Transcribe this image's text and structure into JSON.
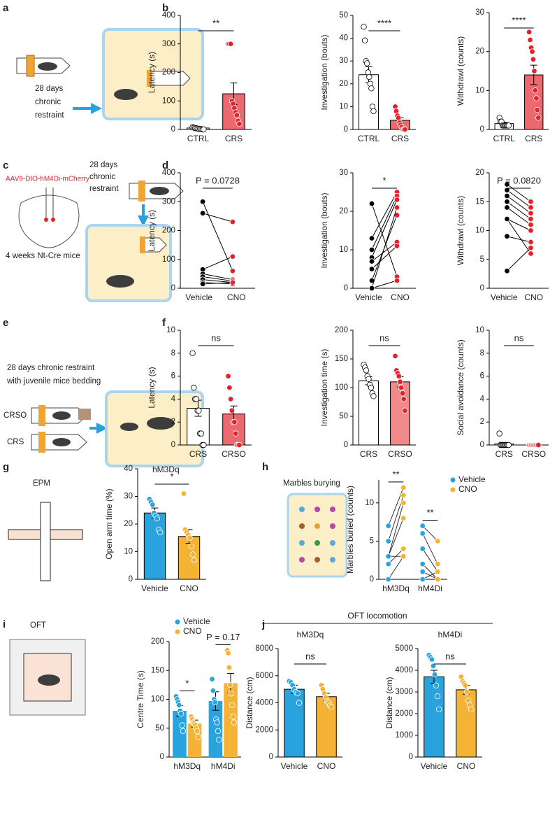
{
  "panel_labels": [
    "a",
    "b",
    "c",
    "d",
    "e",
    "f",
    "g",
    "h",
    "i",
    "j"
  ],
  "schematics": {
    "a": {
      "line1": "28 days",
      "line2": "chronic",
      "line3": "restraint"
    },
    "c": {
      "virus": "AAV9-DIO-hM4Di-mCherry",
      "mice": "4 weeks Nt-Cre mice",
      "line1": "28 days",
      "line2": "chronic",
      "line3": "restraint"
    },
    "e": {
      "line1": "28 days chronic restraint",
      "line2": "with juvenile mice bedding",
      "crso": "CRSO",
      "crs": "CRS"
    },
    "g": {
      "label": "EPM"
    },
    "h": {
      "label": "Marbles burying"
    },
    "i": {
      "label": "OFT"
    },
    "j": {
      "label": "OFT locomotion"
    }
  },
  "chart_data": [
    {
      "type": "bar",
      "ylabel": "Latency (s)",
      "ylim": [
        0,
        400
      ],
      "yticks": [
        0,
        100,
        200,
        300,
        400
      ],
      "categories": [
        "CTRL",
        "CRS"
      ],
      "values": [
        5,
        125
      ],
      "errors": [
        2,
        38
      ],
      "points": [
        [
          8,
          6,
          5,
          4,
          3,
          2,
          2,
          1,
          0,
          0
        ],
        [
          300,
          300,
          300,
          100,
          90,
          75,
          60,
          50,
          30,
          20
        ]
      ],
      "fills": [
        "#ffffff",
        "#ec6a6f"
      ],
      "dot_colors": [
        "#ffffff",
        "#e2232b"
      ],
      "annotation": "**"
    },
    {
      "type": "bar",
      "ylabel": "Investigation (bouts)",
      "ylim": [
        0,
        50
      ],
      "yticks": [
        0,
        10,
        20,
        30,
        40,
        50
      ],
      "categories": [
        "CTRL",
        "CRS"
      ],
      "values": [
        24,
        4
      ],
      "errors": [
        3.5,
        1.2
      ],
      "points": [
        [
          45,
          39,
          30,
          29,
          25,
          23,
          20,
          18,
          10,
          8
        ],
        [
          10,
          8,
          6,
          5,
          3,
          2,
          1,
          0,
          0,
          0
        ]
      ],
      "fills": [
        "#ffffff",
        "#ec6a6f"
      ],
      "dot_colors": [
        "#ffffff",
        "#e2232b"
      ],
      "annotation": "****"
    },
    {
      "type": "bar",
      "ylabel": "Withdrawl (counts)",
      "ylim": [
        0,
        30
      ],
      "yticks": [
        0,
        10,
        20,
        30
      ],
      "categories": [
        "CTRL",
        "CRS"
      ],
      "values": [
        1.5,
        14
      ],
      "errors": [
        0.3,
        2.5
      ],
      "points": [
        [
          3,
          2,
          2,
          1,
          1,
          1,
          1,
          1,
          1,
          1
        ],
        [
          25,
          23,
          21,
          20,
          18,
          15,
          10,
          8,
          5,
          3
        ]
      ],
      "fills": [
        "#ffffff",
        "#ec6a6f"
      ],
      "dot_colors": [
        "#ffffff",
        "#e2232b"
      ],
      "annotation": "****"
    },
    {
      "type": "paired",
      "ylabel": "Latency (s)",
      "ylim": [
        0,
        400
      ],
      "yticks": [
        0,
        100,
        200,
        300,
        400
      ],
      "categories": [
        "Vehicle",
        "CNO"
      ],
      "pairs": [
        [
          300,
          60
        ],
        [
          260,
          230
        ],
        [
          65,
          110
        ],
        [
          50,
          30
        ],
        [
          40,
          25
        ],
        [
          30,
          20
        ],
        [
          20,
          15
        ],
        [
          15,
          20
        ]
      ],
      "colors": [
        "#000000",
        "#e2232b"
      ],
      "annotation": "P = 0.0728"
    },
    {
      "type": "paired",
      "ylabel": "Investigation (bouts)",
      "ylim": [
        0,
        30
      ],
      "yticks": [
        0,
        10,
        20,
        30
      ],
      "categories": [
        "Vehicle",
        "CNO"
      ],
      "pairs": [
        [
          22,
          3
        ],
        [
          13,
          25
        ],
        [
          10,
          24
        ],
        [
          8,
          23
        ],
        [
          7,
          12
        ],
        [
          5,
          11
        ],
        [
          2,
          19
        ],
        [
          0,
          2
        ],
        [
          0,
          21
        ]
      ],
      "colors": [
        "#000000",
        "#e2232b"
      ],
      "annotation": "*"
    },
    {
      "type": "paired",
      "ylabel": "Withdrawl (counts)",
      "ylim": [
        0,
        20
      ],
      "yticks": [
        0,
        5,
        10,
        15,
        20
      ],
      "categories": [
        "Vehicle",
        "CNO"
      ],
      "pairs": [
        [
          18,
          15
        ],
        [
          17,
          14
        ],
        [
          16,
          13
        ],
        [
          15,
          12
        ],
        [
          14,
          11
        ],
        [
          12,
          10
        ],
        [
          9,
          8
        ],
        [
          3,
          7
        ],
        [
          12,
          6
        ]
      ],
      "colors": [
        "#000000",
        "#e2232b"
      ],
      "annotation": "P = 0.0820"
    },
    {
      "type": "bar",
      "ylabel": "Latency (s)",
      "ylim": [
        0,
        10
      ],
      "yticks": [
        0,
        2,
        4,
        6,
        8,
        10
      ],
      "categories": [
        "CRS",
        "CRSO"
      ],
      "values": [
        3.2,
        2.7
      ],
      "errors": [
        0.7,
        0.7
      ],
      "points": [
        [
          8,
          5,
          4,
          4,
          3,
          3,
          1,
          1,
          0,
          0
        ],
        [
          6,
          5,
          4,
          3,
          2,
          2,
          1,
          0,
          0,
          0
        ]
      ],
      "fills": [
        "#ffffff",
        "#ec6a6f"
      ],
      "dot_colors": [
        "#ffffff",
        "#e2232b"
      ],
      "annotation": "ns"
    },
    {
      "type": "bar",
      "ylabel": "Investigation time (s)",
      "ylim": [
        0,
        200
      ],
      "yticks": [
        0,
        50,
        100,
        150,
        200
      ],
      "categories": [
        "CRS",
        "CRSO"
      ],
      "values": [
        112,
        110
      ],
      "errors": [
        7,
        9
      ],
      "points": [
        [
          140,
          135,
          130,
          120,
          115,
          105,
          100,
          90,
          85
        ],
        [
          155,
          130,
          125,
          120,
          110,
          100,
          90,
          80,
          60
        ]
      ],
      "fills": [
        "#ffffff",
        "#f08a8a"
      ],
      "dot_colors": [
        "#ffffff",
        "#e2232b"
      ],
      "annotation": "ns"
    },
    {
      "type": "bar",
      "ylabel": "Social avoidance (counts)",
      "ylim": [
        0,
        10
      ],
      "yticks": [
        0,
        2,
        4,
        6,
        8,
        10
      ],
      "categories": [
        "CRS",
        "CRSO"
      ],
      "values": [
        0.1,
        0
      ],
      "errors": [
        0.1,
        0
      ],
      "points": [
        [
          1,
          0,
          0,
          0,
          0,
          0,
          0,
          0,
          0,
          0
        ],
        [
          0,
          0,
          0,
          0,
          0,
          0,
          0,
          0,
          0,
          0
        ]
      ],
      "fills": [
        "#ffffff",
        "#ec6a6f"
      ],
      "dot_colors": [
        "#ffffff",
        "#e2232b"
      ],
      "annotation": "ns"
    },
    {
      "type": "bar",
      "title": "hM3Dq",
      "ylabel": "Open arm time (%)",
      "ylim": [
        0,
        40
      ],
      "yticks": [
        0,
        10,
        20,
        30,
        40
      ],
      "categories": [
        "Vehicle",
        "CNO"
      ],
      "values": [
        24,
        15.5
      ],
      "errors": [
        1.8,
        2.5
      ],
      "points": [
        [
          29,
          28,
          27,
          24,
          23,
          22,
          18,
          17
        ],
        [
          31,
          18,
          17,
          16,
          15,
          12,
          9,
          7
        ]
      ],
      "fills": [
        "#29a3dd",
        "#f5b335"
      ],
      "dot_colors": [
        "#29a3dd",
        "#f5b335"
      ],
      "annotation": "*"
    },
    {
      "type": "grouped_paired",
      "ylabel": "Marbles buried (counts)",
      "ylim": [
        0,
        13
      ],
      "yticks": [
        0,
        5,
        10
      ],
      "categories": [
        "hM3Dq",
        "hM4Di"
      ],
      "legend": "upper right",
      "series": [
        {
          "name": "Vehicle",
          "color": "#29a3dd"
        },
        {
          "name": "CNO",
          "color": "#f5b335"
        }
      ],
      "pairs": [
        [
          [
            7,
            12
          ],
          [
            5,
            11
          ],
          [
            3,
            10
          ],
          [
            3,
            8
          ],
          [
            2,
            4
          ],
          [
            0,
            3
          ],
          [
            3,
            3
          ]
        ],
        [
          [
            7,
            5
          ],
          [
            6,
            2
          ],
          [
            4,
            1
          ],
          [
            2,
            0
          ],
          [
            1,
            0
          ],
          [
            0,
            1
          ]
        ]
      ],
      "annotations": [
        "**",
        "**"
      ]
    },
    {
      "type": "grouped_bar",
      "ylabel": "Centre Time (s)",
      "ylim": [
        0,
        200
      ],
      "yticks": [
        0,
        50,
        100,
        150,
        200
      ],
      "categories": [
        "hM3Dq",
        "hM4Di"
      ],
      "legend": "upper left",
      "series": [
        {
          "name": "Vehicle",
          "color": "#29a3dd",
          "values": [
            80,
            97
          ],
          "errors": [
            9,
            16
          ],
          "points": [
            [
              105,
              100,
              95,
              90,
              80,
              75,
              55,
              45
            ],
            [
              135,
              115,
              100,
              95,
              65,
              60,
              45,
              30
            ]
          ]
        },
        {
          "name": "CNO",
          "color": "#f5b335",
          "values": [
            58,
            128
          ],
          "errors": [
            6,
            17
          ],
          "points": [
            [
              70,
              65,
              60,
              58,
              55,
              50,
              45,
              35
            ],
            [
              185,
              180,
              155,
              125,
              110,
              90,
              70,
              60
            ]
          ]
        }
      ],
      "annotations": [
        "*",
        "P = 0.17"
      ]
    },
    {
      "type": "bar",
      "title": "hM3Dq",
      "ylabel": "Distance (cm)",
      "ylim": [
        0,
        8000
      ],
      "yticks": [
        0,
        2000,
        4000,
        6000,
        8000
      ],
      "categories": [
        "Vehicle",
        "CNO"
      ],
      "values": [
        5000,
        4450
      ],
      "errors": [
        300,
        250
      ],
      "points": [
        [
          5600,
          5500,
          5300,
          5000,
          4800,
          4700,
          4000
        ],
        [
          5300,
          5000,
          4700,
          4400,
          4100,
          4000,
          3800,
          3700
        ]
      ],
      "fills": [
        "#29a3dd",
        "#f5b335"
      ],
      "dot_colors": [
        "#29a3dd",
        "#f5b335"
      ],
      "annotation": "ns"
    },
    {
      "type": "bar",
      "title": "hM4Di",
      "ylabel": "Distance (cm)",
      "ylim": [
        0,
        5000
      ],
      "yticks": [
        0,
        1000,
        2000,
        3000,
        4000,
        5000
      ],
      "categories": [
        "Vehicle",
        "CNO"
      ],
      "values": [
        3700,
        3100
      ],
      "errors": [
        300,
        200
      ],
      "points": [
        [
          4700,
          4600,
          4500,
          4200,
          3800,
          3300,
          2800,
          2200
        ],
        [
          3700,
          3500,
          3400,
          3300,
          3000,
          2600,
          2400,
          2200
        ]
      ],
      "fills": [
        "#29a3dd",
        "#f5b335"
      ],
      "dot_colors": [
        "#29a3dd",
        "#f5b335"
      ],
      "annotation": "ns"
    }
  ]
}
